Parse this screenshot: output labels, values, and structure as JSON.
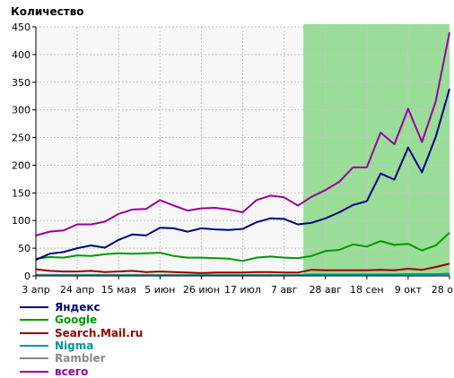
{
  "chart_data": {
    "type": "line",
    "title": "",
    "ylabel": "Количество",
    "xlabel": "",
    "ylim": [
      0,
      450
    ],
    "yticks": [
      0,
      50,
      100,
      150,
      200,
      250,
      300,
      350,
      400,
      450
    ],
    "x_tick_labels": [
      "3 апр",
      "24 апр",
      "15 мая",
      "5 июн",
      "26 июн",
      "17 июл",
      "7 авг",
      "28 авг",
      "18 сен",
      "9 окт",
      "28 о"
    ],
    "grid": true,
    "legend_position": "bottom-left",
    "highlight_color": "#99dd99",
    "series": [
      {
        "name": "Яндекс",
        "color": "#000080",
        "values": [
          29,
          40,
          43,
          50,
          55,
          51,
          65,
          75,
          73,
          87,
          86,
          80,
          86,
          84,
          83,
          85,
          97,
          104,
          103,
          93,
          96,
          104,
          115,
          128,
          135,
          185,
          174,
          232,
          187,
          251,
          338
        ]
      },
      {
        "name": "Google",
        "color": "#009900",
        "values": [
          31,
          34,
          33,
          37,
          36,
          39,
          41,
          40,
          41,
          42,
          36,
          33,
          33,
          32,
          31,
          27,
          33,
          35,
          33,
          32,
          36,
          45,
          47,
          57,
          53,
          63,
          56,
          58,
          46,
          55,
          78
        ]
      },
      {
        "name": "Search.Mail.ru",
        "color": "#990000",
        "values": [
          12,
          9,
          8,
          8,
          9,
          7,
          8,
          9,
          7,
          8,
          7,
          6,
          5,
          6,
          6,
          6,
          7,
          7,
          6,
          6,
          11,
          10,
          10,
          10,
          10,
          11,
          10,
          13,
          11,
          16,
          22
        ]
      },
      {
        "name": "Nigma",
        "color": "#009999",
        "values": [
          1,
          1,
          1,
          1,
          1,
          1,
          1,
          1,
          1,
          1,
          1,
          1,
          1,
          1,
          1,
          1,
          1,
          1,
          1,
          1,
          2,
          2,
          2,
          2,
          2,
          2,
          2,
          3,
          3,
          3,
          4
        ]
      },
      {
        "name": "Rambler",
        "color": "#888888",
        "values": [
          2,
          2,
          2,
          2,
          2,
          2,
          2,
          2,
          2,
          2,
          2,
          2,
          2,
          2,
          2,
          2,
          2,
          2,
          2,
          2,
          3,
          3,
          3,
          3,
          3,
          3,
          3,
          3,
          3,
          3,
          3
        ]
      },
      {
        "name": "всего",
        "color": "#990099",
        "values": [
          73,
          80,
          82,
          93,
          93,
          98,
          112,
          120,
          121,
          137,
          127,
          118,
          122,
          123,
          120,
          115,
          137,
          145,
          142,
          127,
          143,
          155,
          170,
          196,
          196,
          259,
          238,
          302,
          242,
          315,
          440
        ]
      }
    ]
  },
  "header": {
    "ylabel_text": "Количество"
  }
}
